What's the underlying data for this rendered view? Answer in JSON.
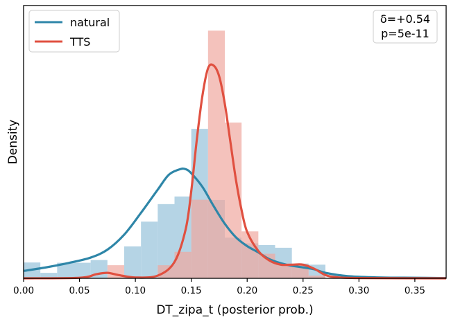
{
  "chart_data": {
    "type": "histogram_kde",
    "xlabel": "DT_zipa_t (posterior prob.)",
    "ylabel": "Density",
    "xlim": [
      0.0,
      0.378
    ],
    "ylim": [
      0,
      1
    ],
    "x_ticks": [
      "0.00",
      "0.05",
      "0.10",
      "0.15",
      "0.20",
      "0.25",
      "0.30",
      "0.35"
    ],
    "x_tick_values": [
      0.0,
      0.05,
      0.1,
      0.15,
      0.2,
      0.25,
      0.3,
      0.35
    ],
    "grid": false,
    "legend_position": "top-left",
    "stats_box": {
      "delta": "δ=+0.54",
      "p": "p=5e-11",
      "position": "top-right"
    },
    "bin_edges": [
      0.0,
      0.015,
      0.03,
      0.045,
      0.06,
      0.075,
      0.09,
      0.105,
      0.12,
      0.135,
      0.15,
      0.165,
      0.18,
      0.195,
      0.21,
      0.225,
      0.24,
      0.255,
      0.27
    ],
    "series": [
      {
        "name": "natural",
        "color": "#2e86a8",
        "hist_color": "#a8cde0",
        "hist_heights": [
          0.058,
          0.02,
          0.057,
          0.057,
          0.067,
          0.0,
          0.117,
          0.208,
          0.272,
          0.3,
          0.548,
          0.287,
          0.149,
          0.128,
          0.122,
          0.112,
          0.054,
          0.05
        ],
        "kde": {
          "x": [
            0.0,
            0.02,
            0.04,
            0.06,
            0.075,
            0.09,
            0.105,
            0.12,
            0.13,
            0.14,
            0.145,
            0.15,
            0.16,
            0.17,
            0.18,
            0.19,
            0.2,
            0.21,
            0.22,
            0.235,
            0.25,
            0.26,
            0.27,
            0.29,
            0.32,
            0.35,
            0.378
          ],
          "y": [
            0.027,
            0.04,
            0.056,
            0.076,
            0.105,
            0.16,
            0.24,
            0.325,
            0.38,
            0.4,
            0.4,
            0.385,
            0.335,
            0.265,
            0.2,
            0.15,
            0.118,
            0.095,
            0.07,
            0.05,
            0.04,
            0.033,
            0.02,
            0.008,
            0.003,
            0.002,
            0.001
          ]
        }
      },
      {
        "name": "TTS",
        "color": "#e05040",
        "hist_color": "#f0a89f",
        "hist_heights": [
          0.0,
          0.0,
          0.0,
          0.0,
          0.0,
          0.048,
          0.0,
          0.0,
          0.048,
          0.097,
          0.288,
          0.908,
          0.571,
          0.172,
          0.09,
          0.054,
          0.051,
          0.01
        ],
        "kde": {
          "x": [
            0.0,
            0.05,
            0.065,
            0.075,
            0.085,
            0.1,
            0.12,
            0.135,
            0.145,
            0.15,
            0.155,
            0.16,
            0.165,
            0.17,
            0.175,
            0.18,
            0.185,
            0.19,
            0.195,
            0.2,
            0.21,
            0.22,
            0.23,
            0.24,
            0.25,
            0.26,
            0.27,
            0.28,
            0.3,
            0.378
          ],
          "y": [
            0.0,
            0.002,
            0.015,
            0.02,
            0.012,
            0.003,
            0.01,
            0.06,
            0.18,
            0.32,
            0.51,
            0.67,
            0.77,
            0.78,
            0.74,
            0.64,
            0.5,
            0.36,
            0.25,
            0.17,
            0.1,
            0.065,
            0.05,
            0.05,
            0.05,
            0.035,
            0.012,
            0.004,
            0.001,
            0.0
          ]
        }
      }
    ]
  }
}
